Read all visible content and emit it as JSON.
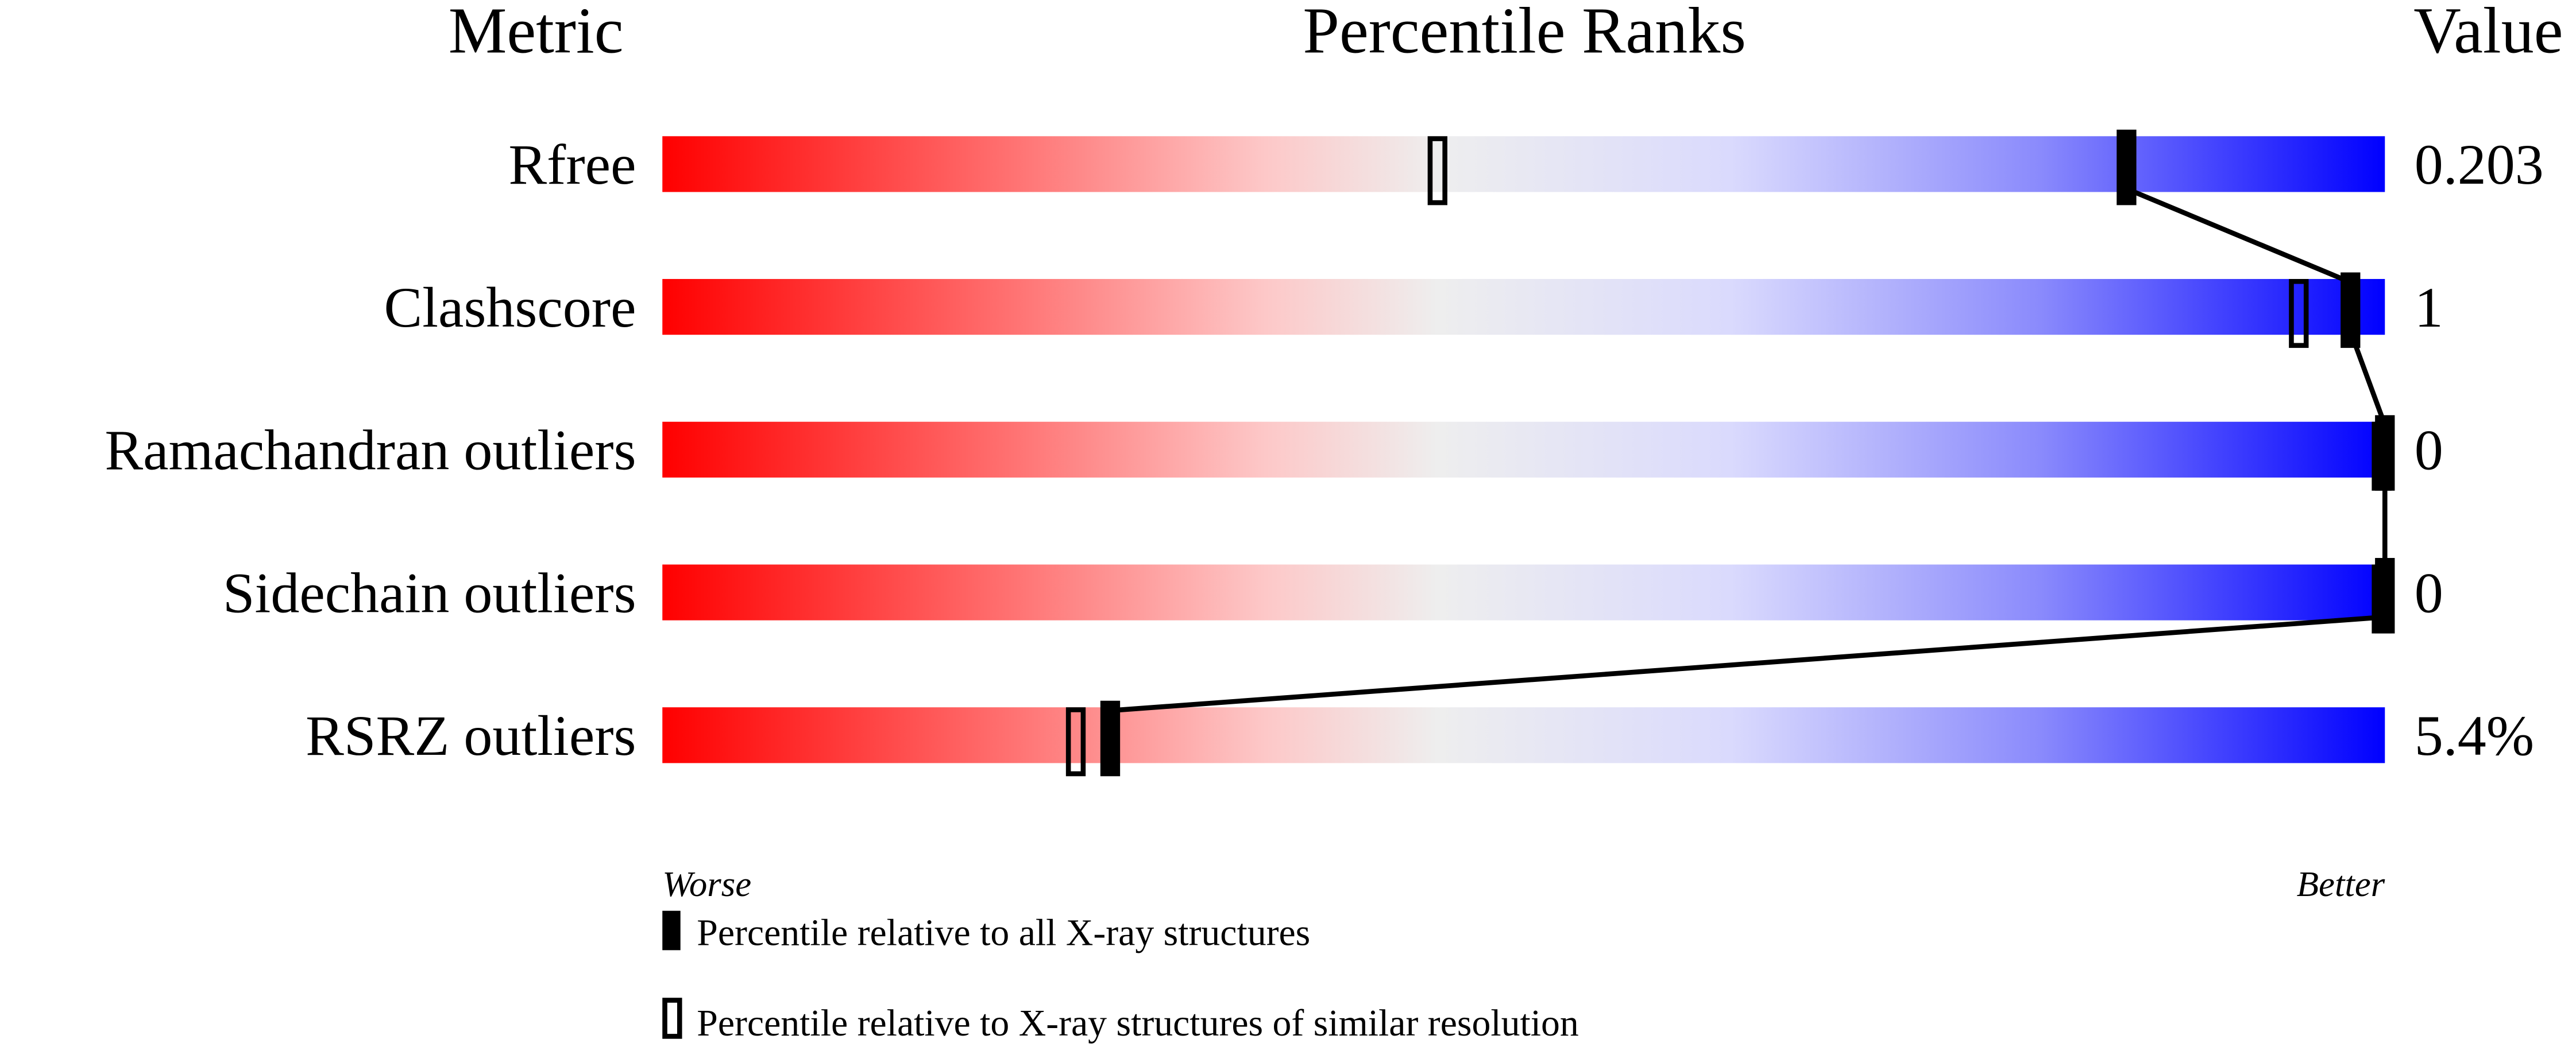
{
  "chart_data": {
    "type": "percentile-ranks",
    "headers": {
      "metric": "Metric",
      "percentile": "Percentile Ranks",
      "value": "Value"
    },
    "xlim": [
      0,
      100
    ],
    "axis_labels": {
      "left": "Worse",
      "right": "Better"
    },
    "gradient_colors": {
      "worse": "#ff0000",
      "middle": "#eeeeee",
      "better": "#0000ff"
    },
    "metrics": [
      {
        "name": "Rfree",
        "value": "0.203",
        "percentile_all": 85,
        "percentile_similar": 45
      },
      {
        "name": "Clashscore",
        "value": "1",
        "percentile_all": 98,
        "percentile_similar": 95
      },
      {
        "name": "Ramachandran outliers",
        "value": "0",
        "percentile_all": 100,
        "percentile_similar": 100
      },
      {
        "name": "Sidechain outliers",
        "value": "0",
        "percentile_all": 100,
        "percentile_similar": 100
      },
      {
        "name": "RSRZ outliers",
        "value": "5.4%",
        "percentile_all": 26,
        "percentile_similar": 24
      }
    ],
    "legend": [
      {
        "marker": "filled",
        "label": "Percentile relative to all X-ray structures"
      },
      {
        "marker": "open",
        "label": "Percentile relative to X-ray structures of similar resolution"
      }
    ]
  }
}
